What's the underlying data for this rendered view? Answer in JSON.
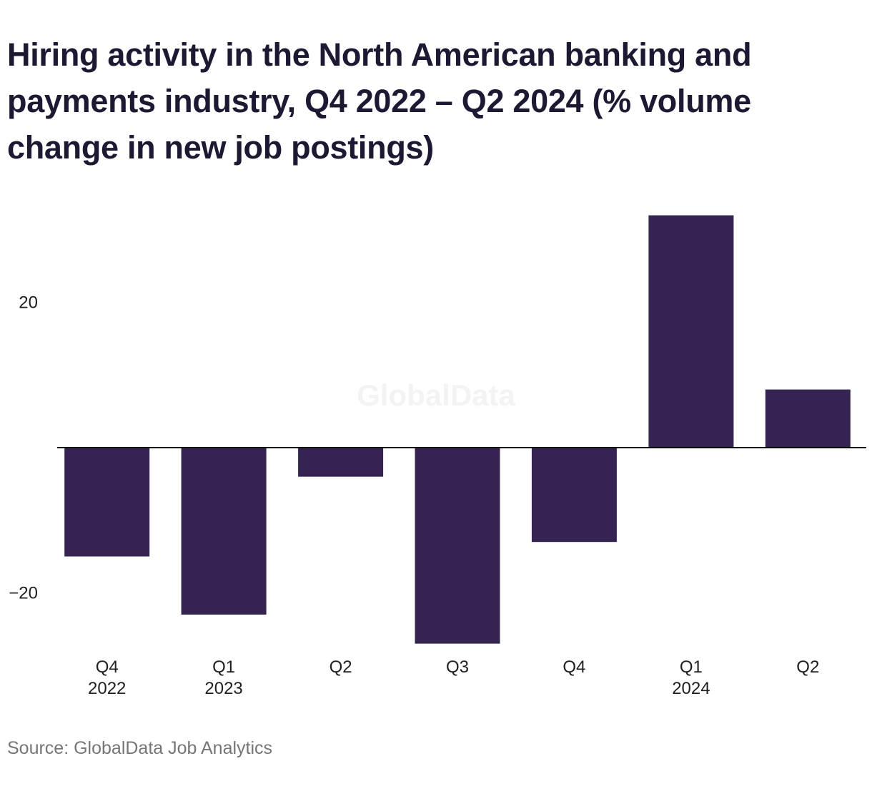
{
  "colors": {
    "bar": "#352451",
    "baseline": "#000000",
    "title": "#1c1a33",
    "source": "#767676"
  },
  "watermark": "GlobalData",
  "source": "Source: GlobalData Job Analytics",
  "chart_data": {
    "type": "bar",
    "title": "Hiring activity in the North American banking and payments industry, Q4 2022 – Q2 2024 (% volume change in new job postings)",
    "xlabel": "",
    "ylabel": "",
    "categories": [
      {
        "quarter": "Q4",
        "year": "2022"
      },
      {
        "quarter": "Q1",
        "year": "2023"
      },
      {
        "quarter": "Q2",
        "year": ""
      },
      {
        "quarter": "Q3",
        "year": ""
      },
      {
        "quarter": "Q4",
        "year": ""
      },
      {
        "quarter": "Q1",
        "year": "2024"
      },
      {
        "quarter": "Q2",
        "year": ""
      }
    ],
    "values": [
      -15,
      -23,
      -4,
      -27,
      -13,
      32,
      8
    ],
    "ylim": [
      -27,
      33
    ],
    "yticks": [
      {
        "value": 20,
        "label": "20"
      },
      {
        "value": -20,
        "label": "−20"
      }
    ],
    "grid": false,
    "legend": "none"
  }
}
